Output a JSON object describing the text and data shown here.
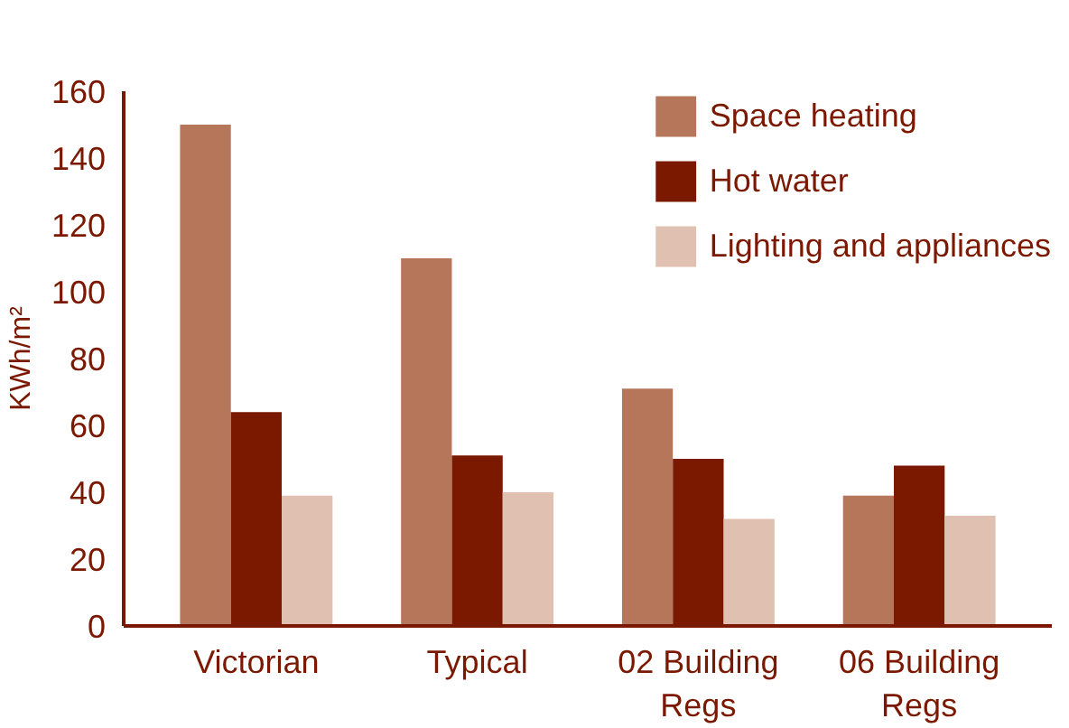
{
  "chart_data": {
    "type": "bar",
    "ylabel": "KWh/m²",
    "categories": [
      "Victorian",
      "Typical",
      "02 Building Regs",
      "06 Building Regs"
    ],
    "series": [
      {
        "name": "Space heating",
        "color": "#b5765a",
        "values": [
          150,
          110,
          71,
          39
        ]
      },
      {
        "name": "Hot water",
        "color": "#7a1800",
        "values": [
          64,
          51,
          50,
          48
        ]
      },
      {
        "name": "Lighting and appliances",
        "color": "#e0c0b0",
        "values": [
          39,
          40,
          32,
          33
        ]
      }
    ],
    "ylim": [
      0,
      160
    ],
    "yticks": [
      0,
      20,
      40,
      60,
      80,
      100,
      120,
      140,
      160
    ],
    "grid": false,
    "legend": "top right"
  }
}
